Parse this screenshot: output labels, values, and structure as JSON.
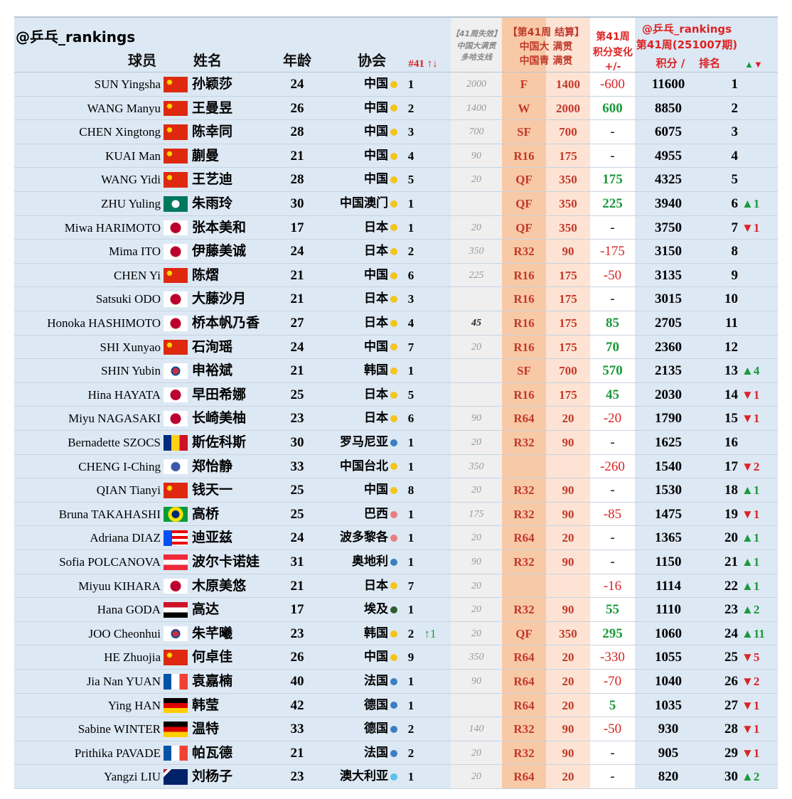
{
  "header": {
    "handle": "@乒乓_rankings",
    "player": "球员",
    "name": "姓名",
    "age": "年龄",
    "association": "协会",
    "assoc_rank": "#41 ↑↓",
    "expired": [
      "【41周失效】",
      "中国大满贯",
      "多哈支线"
    ],
    "result": [
      "【第41周 结算】",
      "中国大 满贯",
      "中国青 满贯"
    ],
    "change": [
      "第41周",
      "积分变化",
      "+/-"
    ],
    "ranking": [
      "@乒乓_rankings",
      "第41周(251007期)"
    ],
    "points": "积分 /",
    "rank": "排名",
    "movement": "▲▼"
  },
  "rows": [
    {
      "en": "SUN Yingsha",
      "cn": "孙颖莎",
      "age": 24,
      "assoc": "中国",
      "assoc_rank": 1,
      "assoc_move": null,
      "expired": 2000,
      "stage": "F",
      "earned": 1400,
      "change": -600,
      "points": 11600,
      "rank": 1,
      "move": null
    },
    {
      "en": "WANG Manyu",
      "cn": "王曼昱",
      "age": 26,
      "assoc": "中国",
      "assoc_rank": 2,
      "assoc_move": null,
      "expired": 1400,
      "stage": "W",
      "earned": 2000,
      "change": 600,
      "points": 8850,
      "rank": 2,
      "move": null
    },
    {
      "en": "CHEN Xingtong",
      "cn": "陈幸同",
      "age": 28,
      "assoc": "中国",
      "assoc_rank": 3,
      "assoc_move": null,
      "expired": 700,
      "stage": "SF",
      "earned": 700,
      "change": "-",
      "points": 6075,
      "rank": 3,
      "move": null
    },
    {
      "en": "KUAI Man",
      "cn": "蒯曼",
      "age": 21,
      "assoc": "中国",
      "assoc_rank": 4,
      "assoc_move": null,
      "expired": 90,
      "stage": "R16",
      "earned": 175,
      "change": "-",
      "points": 4955,
      "rank": 4,
      "move": null
    },
    {
      "en": "WANG Yidi",
      "cn": "王艺迪",
      "age": 28,
      "assoc": "中国",
      "assoc_rank": 5,
      "assoc_move": null,
      "expired": 20,
      "stage": "QF",
      "earned": 350,
      "change": 175,
      "points": 4325,
      "rank": 5,
      "move": null
    },
    {
      "en": "ZHU Yuling",
      "cn": "朱雨玲",
      "age": 30,
      "assoc": "中国澳门",
      "assoc_rank": 1,
      "assoc_move": null,
      "expired": null,
      "stage": "QF",
      "earned": 350,
      "change": 225,
      "points": 3940,
      "rank": 6,
      "move": "▲1"
    },
    {
      "en": "Miwa HARIMOTO",
      "cn": "张本美和",
      "age": 17,
      "assoc": "日本",
      "assoc_rank": 1,
      "assoc_move": null,
      "expired": 20,
      "stage": "QF",
      "earned": 350,
      "change": "-",
      "points": 3750,
      "rank": 7,
      "move": "▼1"
    },
    {
      "en": "Mima ITO",
      "cn": "伊藤美诚",
      "age": 24,
      "assoc": "日本",
      "assoc_rank": 2,
      "assoc_move": null,
      "expired": 350,
      "stage": "R32",
      "earned": 90,
      "change": -175,
      "points": 3150,
      "rank": 8,
      "move": null
    },
    {
      "en": "CHEN Yi",
      "cn": "陈熠",
      "age": 21,
      "assoc": "中国",
      "assoc_rank": 6,
      "assoc_move": null,
      "expired": 225,
      "stage": "R16",
      "earned": 175,
      "change": -50,
      "points": 3135,
      "rank": 9,
      "move": null
    },
    {
      "en": "Satsuki ODO",
      "cn": "大藤沙月",
      "age": 21,
      "assoc": "日本",
      "assoc_rank": 3,
      "assoc_move": null,
      "expired": null,
      "stage": "R16",
      "earned": 175,
      "change": "-",
      "points": 3015,
      "rank": 10,
      "move": null
    },
    {
      "en": "Honoka HASHIMOTO",
      "cn": "桥本帆乃香",
      "age": 27,
      "assoc": "日本",
      "assoc_rank": 4,
      "assoc_move": null,
      "expired": 45,
      "stage": "R16",
      "earned": 175,
      "change": 85,
      "points": 2705,
      "rank": 11,
      "move": null
    },
    {
      "en": "SHI Xunyao",
      "cn": "石洵瑶",
      "age": 24,
      "assoc": "中国",
      "assoc_rank": 7,
      "assoc_move": null,
      "expired": 20,
      "stage": "R16",
      "earned": 175,
      "change": 70,
      "points": 2360,
      "rank": 12,
      "move": null
    },
    {
      "en": "SHIN Yubin",
      "cn": "申裕斌",
      "age": 21,
      "assoc": "韩国",
      "assoc_rank": 1,
      "assoc_move": null,
      "expired": null,
      "stage": "SF",
      "earned": 700,
      "change": 570,
      "points": 2135,
      "rank": 13,
      "move": "▲4"
    },
    {
      "en": "Hina HAYATA",
      "cn": "早田希娜",
      "age": 25,
      "assoc": "日本",
      "assoc_rank": 5,
      "assoc_move": null,
      "expired": null,
      "stage": "R16",
      "earned": 175,
      "change": 45,
      "points": 2030,
      "rank": 14,
      "move": "▼1"
    },
    {
      "en": "Miyu NAGASAKI",
      "cn": "长崎美柚",
      "age": 23,
      "assoc": "日本",
      "assoc_rank": 6,
      "assoc_move": null,
      "expired": 90,
      "stage": "R64",
      "earned": 20,
      "change": -20,
      "points": 1790,
      "rank": 15,
      "move": "▼1"
    },
    {
      "en": "Bernadette SZOCS",
      "cn": "斯佐科斯",
      "age": 30,
      "assoc": "罗马尼亚",
      "assoc_rank": 1,
      "assoc_move": null,
      "expired": 20,
      "stage": "R32",
      "earned": 90,
      "change": "-",
      "points": 1625,
      "rank": 16,
      "move": null
    },
    {
      "en": "CHENG I-Ching",
      "cn": "郑怡静",
      "age": 33,
      "assoc": "中国台北",
      "assoc_rank": 1,
      "assoc_move": null,
      "expired": 350,
      "stage": null,
      "earned": null,
      "change": -260,
      "points": 1540,
      "rank": 17,
      "move": "▼2"
    },
    {
      "en": "QIAN Tianyi",
      "cn": "钱天一",
      "age": 25,
      "assoc": "中国",
      "assoc_rank": 8,
      "assoc_move": null,
      "expired": 20,
      "stage": "R32",
      "earned": 90,
      "change": "-",
      "points": 1530,
      "rank": 18,
      "move": "▲1"
    },
    {
      "en": "Bruna TAKAHASHI",
      "cn": "高桥",
      "age": 25,
      "assoc": "巴西",
      "assoc_rank": 1,
      "assoc_move": null,
      "expired": 175,
      "stage": "R32",
      "earned": 90,
      "change": -85,
      "points": 1475,
      "rank": 19,
      "move": "▼1"
    },
    {
      "en": "Adriana DIAZ",
      "cn": "迪亚兹",
      "age": 24,
      "assoc": "波多黎各",
      "assoc_rank": 1,
      "assoc_move": null,
      "expired": 20,
      "stage": "R64",
      "earned": 20,
      "change": "-",
      "points": 1365,
      "rank": 20,
      "move": "▲1"
    },
    {
      "en": "Sofia POLCANOVA",
      "cn": "波尔卡诺娃",
      "age": 31,
      "assoc": "奥地利",
      "assoc_rank": 1,
      "assoc_move": null,
      "expired": 90,
      "stage": "R32",
      "earned": 90,
      "change": "-",
      "points": 1150,
      "rank": 21,
      "move": "▲1"
    },
    {
      "en": "Miyuu KIHARA",
      "cn": "木原美悠",
      "age": 21,
      "assoc": "日本",
      "assoc_rank": 7,
      "assoc_move": null,
      "expired": 20,
      "stage": null,
      "earned": null,
      "change": -16,
      "points": 1114,
      "rank": 22,
      "move": "▲1"
    },
    {
      "en": "Hana GODA",
      "cn": "高达",
      "age": 17,
      "assoc": "埃及",
      "assoc_rank": 1,
      "assoc_move": null,
      "expired": 20,
      "stage": "R32",
      "earned": 90,
      "change": 55,
      "points": 1110,
      "rank": 23,
      "move": "▲2"
    },
    {
      "en": "JOO Cheonhui",
      "cn": "朱芊曦",
      "age": 23,
      "assoc": "韩国",
      "assoc_rank": 2,
      "assoc_move": "↑1",
      "expired": 20,
      "stage": "QF",
      "earned": 350,
      "change": 295,
      "points": 1060,
      "rank": 24,
      "move": "▲11"
    },
    {
      "en": "HE Zhuojia",
      "cn": "何卓佳",
      "age": 26,
      "assoc": "中国",
      "assoc_rank": 9,
      "assoc_move": null,
      "expired": 350,
      "stage": "R64",
      "earned": 20,
      "change": -330,
      "points": 1055,
      "rank": 25,
      "move": "▼5"
    },
    {
      "en": "Jia Nan YUAN",
      "cn": "袁嘉楠",
      "age": 40,
      "assoc": "法国",
      "assoc_rank": 1,
      "assoc_move": null,
      "expired": 90,
      "stage": "R64",
      "earned": 20,
      "change": -70,
      "points": 1040,
      "rank": 26,
      "move": "▼2"
    },
    {
      "en": "Ying HAN",
      "cn": "韩莹",
      "age": 42,
      "assoc": "德国",
      "assoc_rank": 1,
      "assoc_move": null,
      "expired": null,
      "stage": "R64",
      "earned": 20,
      "change": 5,
      "points": 1035,
      "rank": 27,
      "move": "▼1"
    },
    {
      "en": "Sabine WINTER",
      "cn": "温特",
      "age": 33,
      "assoc": "德国",
      "assoc_rank": 2,
      "assoc_move": null,
      "expired": 140,
      "stage": "R32",
      "earned": 90,
      "change": -50,
      "points": 930,
      "rank": 28,
      "move": "▼1"
    },
    {
      "en": "Prithika PAVADE",
      "cn": "帕瓦德",
      "age": 21,
      "assoc": "法国",
      "assoc_rank": 2,
      "assoc_move": null,
      "expired": 20,
      "stage": "R32",
      "earned": 90,
      "change": "-",
      "points": 905,
      "rank": 29,
      "move": "▼1"
    },
    {
      "en": "Yangzi LIU",
      "cn": "刘杨子",
      "age": 23,
      "assoc": "澳大利亚",
      "assoc_rank": 1,
      "assoc_move": null,
      "expired": 20,
      "stage": "R64",
      "earned": 20,
      "change": "-",
      "points": 820,
      "rank": 30,
      "move": "▲2"
    }
  ]
}
